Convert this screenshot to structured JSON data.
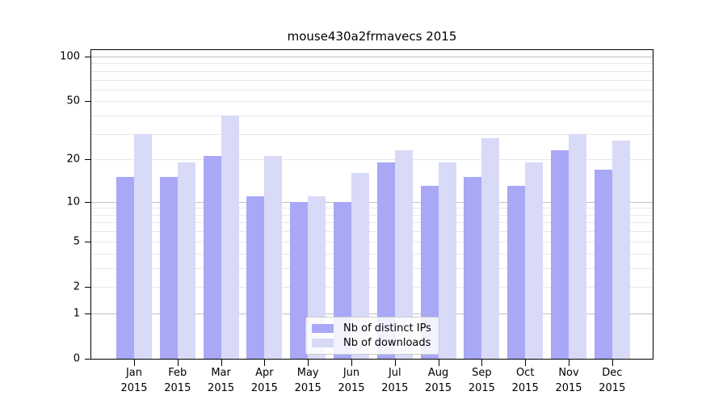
{
  "title": "mouse430a2frmavecs 2015",
  "chart_data": {
    "type": "bar",
    "title": "mouse430a2frmavecs 2015",
    "categories": [
      "Jan 2015",
      "Feb 2015",
      "Mar 2015",
      "Apr 2015",
      "May 2015",
      "Jun 2015",
      "Jul 2015",
      "Aug 2015",
      "Sep 2015",
      "Oct 2015",
      "Nov 2015",
      "Dec 2015"
    ],
    "series": [
      {
        "name": "Nb of distinct IPs",
        "color": "#a8a8f6",
        "values": [
          15,
          15,
          21,
          11,
          10,
          10,
          19,
          13,
          15,
          13,
          23,
          17
        ]
      },
      {
        "name": "Nb of downloads",
        "color": "#d9d9f8",
        "values": [
          30,
          19,
          40,
          21,
          11,
          16,
          23,
          19,
          28,
          19,
          30,
          27
        ]
      }
    ],
    "xlabel": "",
    "ylabel": "",
    "y_axis": {
      "scale": "log1p",
      "tick_values": [
        100,
        50,
        20,
        10,
        5,
        2,
        1,
        0
      ],
      "tick_labels": [
        "100",
        "50",
        "20",
        "10",
        "5",
        "2",
        "1",
        "0"
      ],
      "top_value": 110.4,
      "major_gridlines": [
        1,
        10,
        100
      ],
      "minor_gridlines": [
        2,
        3,
        4,
        5,
        6,
        7,
        8,
        9,
        20,
        30,
        40,
        50,
        60,
        70,
        80,
        90
      ]
    },
    "grid": true,
    "legend_position": "lower center",
    "colors": {
      "bar_distinct_ips": "#a8a8f6",
      "bar_downloads": "#d9d9f8",
      "major_gridline": "#c0c0c0",
      "minor_gridline": "#e8e8e8",
      "axis": "#000000",
      "background": "#ffffff"
    }
  }
}
